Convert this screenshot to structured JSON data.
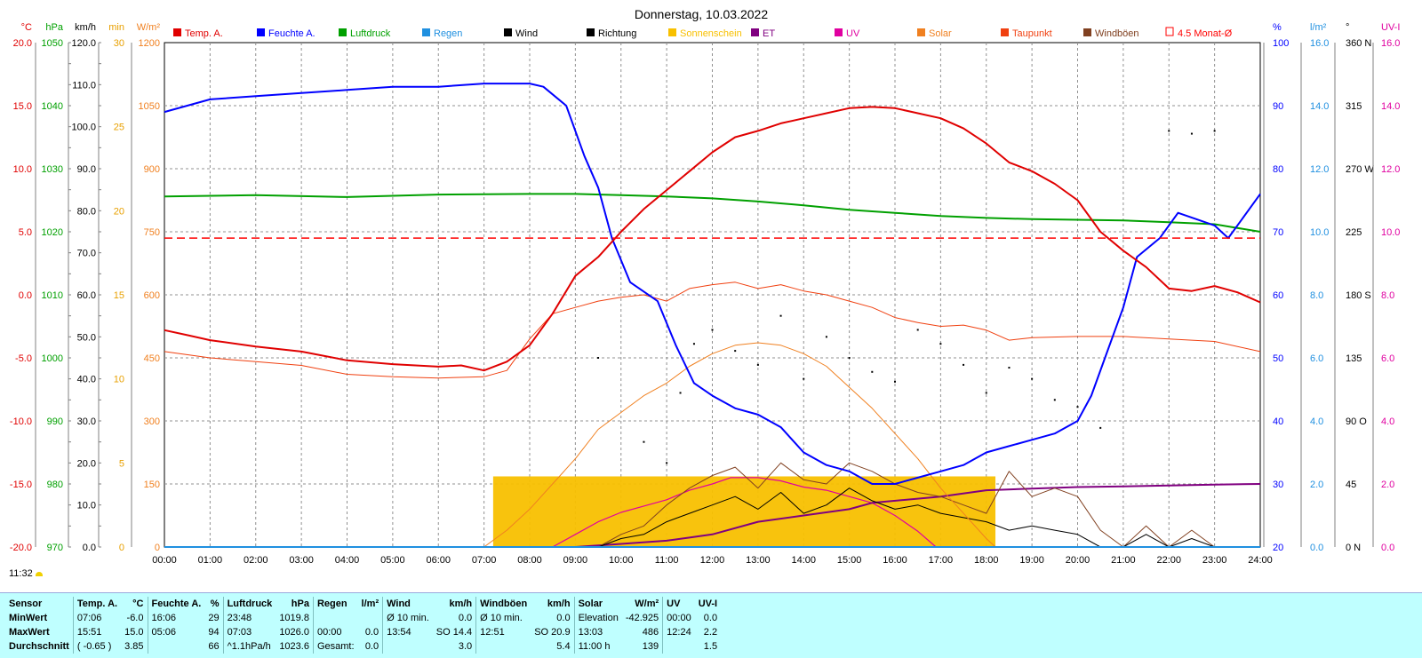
{
  "chart_data": {
    "type": "line",
    "title": "Donnerstag, 10.03.2022",
    "legend_position": "top",
    "grid": true,
    "legend": [
      {
        "name": "Temp. A.",
        "color": "#e00000"
      },
      {
        "name": "Feuchte A.",
        "color": "#0000ff"
      },
      {
        "name": "Luftdruck",
        "color": "#00a000"
      },
      {
        "name": "Regen",
        "color": "#2090e0"
      },
      {
        "name": "Wind",
        "color": "#000000"
      },
      {
        "name": "Richtung",
        "color": "#000000"
      },
      {
        "name": "Sonnenschein",
        "color": "#f8c000"
      },
      {
        "name": "ET",
        "color": "#800080"
      },
      {
        "name": "UV",
        "color": "#e000a0"
      },
      {
        "name": "Solar",
        "color": "#f08020"
      },
      {
        "name": "Taupunkt",
        "color": "#f04010"
      },
      {
        "name": "Windböen",
        "color": "#804020"
      },
      {
        "name": "4.5 Monat-Ø",
        "color": "#ff0000"
      }
    ],
    "x_ticks": [
      "00:00",
      "01:00",
      "02:00",
      "03:00",
      "04:00",
      "05:00",
      "06:00",
      "07:00",
      "08:00",
      "09:00",
      "10:00",
      "11:00",
      "12:00",
      "13:00",
      "14:00",
      "15:00",
      "16:00",
      "17:00",
      "18:00",
      "19:00",
      "20:00",
      "21:00",
      "22:00",
      "23:00",
      "24:00"
    ],
    "axes_left": [
      {
        "unit": "°C",
        "color": "#e00000",
        "ticks": [
          "20.0",
          "15.0",
          "10.0",
          "5.0",
          "0.0",
          "-5.0",
          "-10.0",
          "-15.0",
          "-20.0"
        ]
      },
      {
        "unit": "hPa",
        "color": "#00a000",
        "ticks": [
          "1050",
          "1040",
          "1030",
          "1020",
          "1010",
          "1000",
          "990",
          "980",
          "970"
        ]
      },
      {
        "unit": "km/h",
        "color": "#000000",
        "ticks": [
          "120.0",
          "110.0",
          "100.0",
          "90.0",
          "80.0",
          "70.0",
          "60.0",
          "50.0",
          "40.0",
          "30.0",
          "20.0",
          "10.0",
          "0.0"
        ]
      },
      {
        "unit": "min",
        "color": "#e8a000",
        "ticks": [
          "30",
          "25",
          "20",
          "15",
          "10",
          "5",
          "0"
        ]
      },
      {
        "unit": "W/m²",
        "color": "#f08020",
        "ticks": [
          "1200",
          "1050",
          "900",
          "750",
          "600",
          "450",
          "300",
          "150",
          "0"
        ]
      }
    ],
    "axes_right": [
      {
        "unit": "%",
        "color": "#0000ff",
        "ticks": [
          "100",
          "90",
          "80",
          "70",
          "60",
          "50",
          "40",
          "30",
          "20"
        ]
      },
      {
        "unit": "l/m²",
        "color": "#2090e0",
        "ticks": [
          "16.0",
          "14.0",
          "12.0",
          "10.0",
          "8.0",
          "6.0",
          "4.0",
          "2.0",
          "0.0"
        ]
      },
      {
        "unit": "°",
        "color": "#000000",
        "ticks": [
          "360 N",
          "315",
          "270 W",
          "225",
          "180 S",
          "135",
          "90 O",
          "45",
          "0 N"
        ]
      },
      {
        "unit": "UV-I",
        "color": "#e000a0",
        "ticks": [
          "16.0",
          "14.0",
          "12.0",
          "10.0",
          "8.0",
          "6.0",
          "4.0",
          "2.0",
          "0.0"
        ]
      }
    ],
    "series": [
      {
        "name": "Temp. A.",
        "color": "#e00000",
        "unit": "°C",
        "x": [
          0,
          0.5,
          1,
          2,
          3,
          4,
          5,
          6,
          6.5,
          7,
          7.5,
          8,
          8.5,
          9,
          9.5,
          10,
          10.5,
          11,
          11.5,
          12,
          12.5,
          13,
          13.5,
          14,
          14.5,
          15,
          15.5,
          16,
          16.5,
          17,
          17.5,
          18,
          18.5,
          19,
          19.5,
          20,
          20.5,
          21,
          21.5,
          22,
          22.5,
          23,
          23.5,
          24
        ],
        "y": [
          -2.8,
          -3.2,
          -3.6,
          -4.1,
          -4.5,
          -5.2,
          -5.5,
          -5.7,
          -5.6,
          -6.0,
          -5.3,
          -4.0,
          -1.5,
          1.5,
          3.0,
          5.0,
          6.8,
          8.3,
          9.8,
          11.3,
          12.5,
          13.0,
          13.6,
          14.0,
          14.4,
          14.8,
          14.9,
          14.8,
          14.4,
          14.0,
          13.2,
          12.0,
          10.5,
          9.8,
          8.8,
          7.5,
          5.0,
          3.5,
          2.2,
          0.5,
          0.3,
          0.7,
          0.2,
          -0.6
        ]
      },
      {
        "name": "Feuchte A.",
        "color": "#0000ff",
        "unit": "%",
        "x": [
          0,
          0.5,
          1,
          2,
          3,
          4,
          5,
          6,
          7,
          8,
          8.3,
          8.8,
          9.2,
          9.5,
          9.8,
          10.2,
          10.8,
          11.2,
          11.6,
          12,
          12.5,
          13,
          13.5,
          14,
          14.5,
          15,
          15.5,
          16,
          16.5,
          17,
          17.5,
          18,
          18.5,
          19,
          19.5,
          20,
          20.3,
          20.6,
          21,
          21.3,
          21.8,
          22.2,
          22.6,
          23,
          23.3,
          23.6,
          24
        ],
        "y": [
          89,
          90,
          91,
          91.5,
          92,
          92.5,
          93,
          93,
          93.5,
          93.5,
          93,
          90,
          82,
          77,
          69,
          62,
          59,
          52,
          46,
          44,
          42,
          41,
          39,
          35,
          33,
          32,
          30,
          30,
          31,
          32,
          33,
          35,
          36,
          37,
          38,
          40,
          44,
          50,
          58,
          66,
          69,
          73,
          72,
          71,
          69,
          72,
          76
        ]
      },
      {
        "name": "Luftdruck",
        "color": "#00a000",
        "unit": "hPa",
        "x": [
          0,
          2,
          4,
          6,
          8,
          9,
          10,
          11,
          12,
          13,
          14,
          15,
          16,
          17,
          18,
          19,
          20,
          21,
          22,
          23,
          24
        ],
        "y": [
          1025.6,
          1025.8,
          1025.5,
          1025.9,
          1026.0,
          1026.0,
          1025.8,
          1025.6,
          1025.3,
          1024.8,
          1024.2,
          1023.5,
          1023.0,
          1022.5,
          1022.2,
          1022.0,
          1021.9,
          1021.8,
          1021.5,
          1021.2,
          1020.0
        ]
      },
      {
        "name": "Solar",
        "color": "#f08020",
        "unit": "W/m²",
        "x": [
          7.0,
          7.5,
          8,
          8.5,
          9,
          9.5,
          10,
          10.5,
          11,
          11.5,
          12,
          12.5,
          13,
          13.5,
          14,
          14.5,
          15,
          15.5,
          16,
          16.5,
          17,
          17.5,
          18,
          18.2
        ],
        "y": [
          0,
          40,
          90,
          150,
          210,
          280,
          320,
          360,
          390,
          430,
          460,
          480,
          486,
          480,
          460,
          430,
          380,
          330,
          270,
          210,
          140,
          80,
          20,
          0
        ]
      },
      {
        "name": "Taupunkt",
        "color": "#f04010",
        "unit": "°C",
        "x": [
          0,
          1,
          2,
          3,
          4,
          5,
          6,
          7,
          7.5,
          8,
          8.5,
          9,
          9.5,
          10,
          10.5,
          11,
          11.5,
          12,
          12.5,
          13,
          13.5,
          14,
          14.5,
          15,
          15.5,
          16,
          16.5,
          17,
          17.5,
          18,
          18.5,
          19,
          20,
          21,
          22,
          23,
          24
        ],
        "y": [
          -4.5,
          -5.0,
          -5.3,
          -5.6,
          -6.3,
          -6.5,
          -6.6,
          -6.5,
          -6.0,
          -3.5,
          -1.5,
          -1.0,
          -0.5,
          -0.2,
          0.0,
          -0.5,
          0.5,
          0.8,
          1.0,
          0.5,
          0.8,
          0.3,
          0.0,
          -0.5,
          -1.0,
          -1.8,
          -2.2,
          -2.5,
          -2.4,
          -2.8,
          -3.6,
          -3.4,
          -3.3,
          -3.3,
          -3.5,
          -3.7,
          -4.5
        ]
      },
      {
        "name": "4.5 Monat-Ø",
        "color": "#ff0000",
        "unit": "°C",
        "x": [
          0,
          24
        ],
        "y": [
          4.5,
          4.5
        ]
      },
      {
        "name": "ET",
        "color": "#800080",
        "unit": "l/m²",
        "x": [
          0,
          9,
          10,
          11,
          11.5,
          12,
          13,
          14,
          15,
          15.5,
          17,
          18,
          19,
          20,
          21,
          22,
          23,
          24
        ],
        "y": [
          0,
          0,
          0.1,
          0.2,
          0.3,
          0.4,
          0.8,
          1.0,
          1.2,
          1.4,
          1.6,
          1.8,
          1.85,
          1.9,
          1.92,
          1.95,
          1.98,
          2.0
        ]
      },
      {
        "name": "UV",
        "color": "#e000a0",
        "unit": "UV-I",
        "x": [
          8.5,
          9,
          9.5,
          10,
          10.5,
          11,
          11.5,
          12,
          12.4,
          13,
          13.5,
          14,
          14.5,
          15,
          15.5,
          16,
          16.5,
          16.9
        ],
        "y": [
          0,
          0.4,
          0.8,
          1.1,
          1.3,
          1.5,
          1.8,
          2.0,
          2.2,
          2.2,
          2.1,
          1.9,
          1.8,
          1.6,
          1.4,
          1.0,
          0.5,
          0
        ]
      },
      {
        "name": "Sonnenschein",
        "color": "#f8c000",
        "unit": "min",
        "x": [
          7.2,
          18.2
        ],
        "y": [
          4.2,
          4.2
        ]
      },
      {
        "name": "Regen",
        "color": "#2090e0",
        "unit": "l/m²",
        "x": [
          0,
          24
        ],
        "y": [
          0,
          0
        ]
      },
      {
        "name": "Wind",
        "color": "#000000",
        "unit": "km/h",
        "x": [
          9.5,
          10,
          10.5,
          11,
          11.5,
          12,
          12.5,
          13,
          13.5,
          14,
          14.5,
          15,
          15.5,
          16,
          16.5,
          17,
          17.5,
          18,
          18.5,
          19,
          19.5,
          20,
          20.5,
          21,
          21.5,
          22,
          22.5,
          23
        ],
        "y": [
          0,
          2,
          3,
          6,
          8,
          10,
          12,
          9,
          13,
          8,
          10,
          14,
          11,
          9,
          10,
          8,
          7,
          6,
          4,
          5,
          4,
          3,
          0,
          0,
          3,
          0,
          2,
          0
        ]
      },
      {
        "name": "Windböen",
        "color": "#804020",
        "unit": "km/h",
        "x": [
          9.5,
          10,
          10.5,
          11,
          11.5,
          12,
          12.5,
          13,
          13.5,
          14,
          14.5,
          15,
          15.5,
          16,
          16.5,
          17,
          17.5,
          18,
          18.5,
          19,
          19.5,
          20,
          20.5,
          21,
          21.5,
          22,
          22.5,
          23
        ],
        "y": [
          0,
          3,
          5,
          10,
          14,
          17,
          19,
          14,
          20,
          16,
          15,
          20,
          18,
          15,
          13,
          12,
          10,
          8,
          18,
          12,
          14,
          12,
          4,
          0,
          5,
          0,
          4,
          0
        ]
      },
      {
        "name": "Richtung",
        "color": "#000000",
        "unit": "°",
        "x": [
          9.5,
          10.5,
          11,
          11.3,
          11.6,
          12,
          12.5,
          13,
          13.5,
          14,
          14.5,
          15,
          15.5,
          16,
          16.5,
          17,
          17.5,
          18,
          18.5,
          19,
          19.5,
          20,
          20.5,
          22,
          22.5,
          23
        ],
        "y": [
          135,
          75,
          60,
          110,
          145,
          155,
          140,
          130,
          165,
          120,
          150,
          135,
          125,
          118,
          155,
          145,
          130,
          110,
          128,
          120,
          105,
          100,
          85,
          297,
          295,
          297
        ]
      }
    ]
  },
  "sun_time": "11:32",
  "stats": {
    "header": [
      "Sensor",
      "Temp. A.",
      "°C",
      "Feuchte A.",
      "%",
      "Luftdruck",
      "hPa",
      "Regen",
      "l/m²",
      "Wind",
      "km/h",
      "Windböen",
      "km/h",
      "Solar",
      "W/m²",
      "UV",
      "UV-I"
    ],
    "rows": [
      {
        "label": "MinWert",
        "cells": [
          "07:06",
          "-6.0",
          "16:06",
          "29",
          "23:48",
          "1019.8",
          "",
          "",
          "Ø 10 min.",
          "0.0",
          "Ø 10 min.",
          "0.0",
          "Elevation",
          "-42.925",
          "00:00",
          "0.0"
        ]
      },
      {
        "label": "MaxWert",
        "cells": [
          "15:51",
          "15.0",
          "05:06",
          "94",
          "07:03",
          "1026.0",
          "00:00",
          "0.0",
          "13:54",
          "SO 14.4",
          "12:51",
          "SO 20.9",
          "13:03",
          "486",
          "12:24",
          "2.2"
        ]
      },
      {
        "label": "Durchschnitt",
        "cells": [
          "( -0.65 )",
          "3.85",
          "",
          "66",
          "^1.1hPa/h",
          "1023.6",
          "Gesamt:",
          "0.0",
          "",
          "3.0",
          "",
          "5.4",
          "11:00 h",
          "139",
          "",
          "1.5"
        ]
      }
    ]
  }
}
